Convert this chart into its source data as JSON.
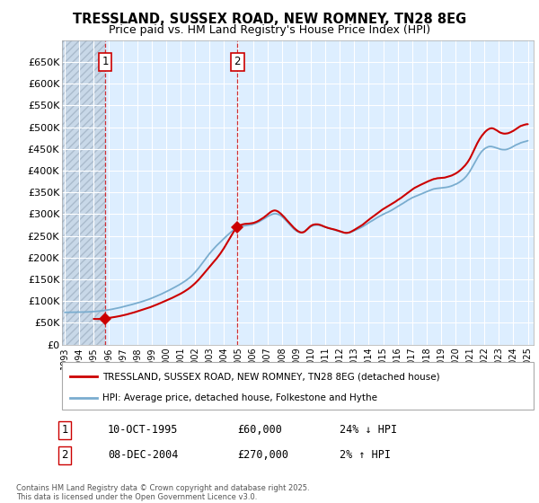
{
  "title": "TRESSLAND, SUSSEX ROAD, NEW ROMNEY, TN28 8EG",
  "subtitle": "Price paid vs. HM Land Registry's House Price Index (HPI)",
  "legend_line1": "TRESSLAND, SUSSEX ROAD, NEW ROMNEY, TN28 8EG (detached house)",
  "legend_line2": "HPI: Average price, detached house, Folkestone and Hythe",
  "annotation1_date": "10-OCT-1995",
  "annotation1_price": "£60,000",
  "annotation1_hpi": "24% ↓ HPI",
  "annotation2_date": "08-DEC-2004",
  "annotation2_price": "£270,000",
  "annotation2_hpi": "2% ↑ HPI",
  "footnote": "Contains HM Land Registry data © Crown copyright and database right 2025.\nThis data is licensed under the Open Government Licence v3.0.",
  "property_color": "#cc0000",
  "hpi_color": "#7aadcf",
  "background_color": "#ffffff",
  "plot_bg_color": "#ddeeff",
  "hatch_region_color": "#c8d8e8",
  "ylim": [
    0,
    700000
  ],
  "yticks": [
    0,
    50000,
    100000,
    150000,
    200000,
    250000,
    300000,
    350000,
    400000,
    450000,
    500000,
    550000,
    600000,
    650000
  ],
  "ytick_labels": [
    "£0",
    "£50K",
    "£100K",
    "£150K",
    "£200K",
    "£250K",
    "£300K",
    "£350K",
    "£400K",
    "£450K",
    "£500K",
    "£550K",
    "£600K",
    "£650K"
  ],
  "sale1_x": 1995.78,
  "sale1_y": 60000,
  "sale2_x": 2004.93,
  "sale2_y": 270000,
  "xlim_left": 1992.8,
  "xlim_right": 2025.4,
  "xtick_years": [
    1993,
    1994,
    1995,
    1996,
    1997,
    1998,
    1999,
    2000,
    2001,
    2002,
    2003,
    2004,
    2005,
    2006,
    2007,
    2008,
    2009,
    2010,
    2011,
    2012,
    2013,
    2014,
    2015,
    2016,
    2017,
    2018,
    2019,
    2020,
    2021,
    2022,
    2023,
    2024,
    2025
  ]
}
